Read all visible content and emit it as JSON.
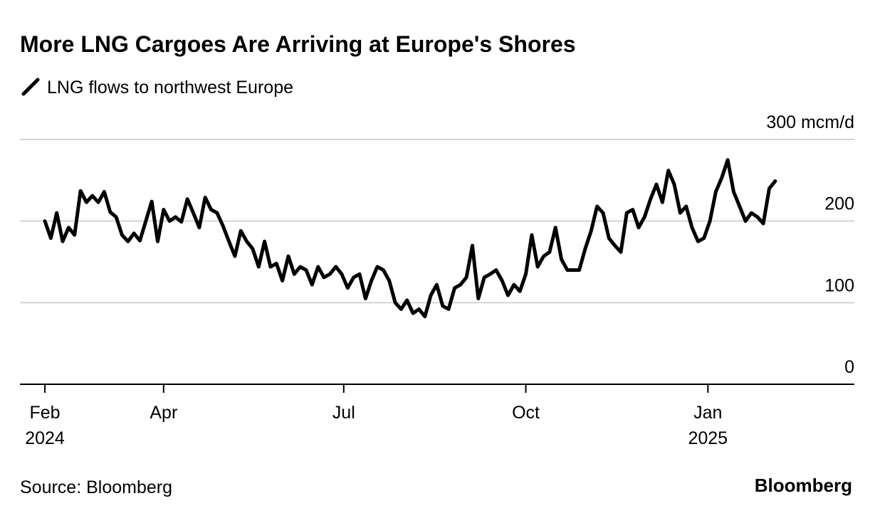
{
  "chart_data": {
    "type": "line",
    "title": "More LNG Cargoes Are Arriving at Europe's Shores",
    "source": "Source: Bloomberg",
    "brand": "Bloomberg",
    "x": [
      0,
      3,
      6,
      9,
      12,
      15,
      18,
      21,
      24,
      27,
      30,
      33,
      36,
      39,
      42,
      45,
      48,
      51,
      54,
      57,
      60,
      63,
      66,
      69,
      72,
      75,
      78,
      81,
      84,
      87,
      90,
      93,
      96,
      99,
      102,
      105,
      108,
      111,
      114,
      117,
      120,
      123,
      126,
      129,
      132,
      135,
      138,
      141,
      144,
      147,
      150,
      153,
      156,
      159,
      162,
      165,
      168,
      171,
      174,
      177,
      180,
      183,
      186,
      189,
      192,
      195,
      198,
      201,
      204,
      207,
      210,
      213,
      216,
      219,
      222,
      225,
      228,
      231,
      234,
      237,
      240,
      243,
      246,
      249,
      252,
      255,
      258,
      261,
      264,
      267,
      270,
      273,
      276,
      279,
      282,
      285,
      288,
      291,
      294,
      297,
      300,
      303,
      306,
      309,
      312,
      315,
      318,
      321,
      324,
      327,
      330,
      333,
      336,
      339,
      342,
      345,
      348,
      351,
      354,
      357,
      360,
      363,
      366,
      369
    ],
    "series": [
      {
        "name": "LNG flows to northwest Europe",
        "color": "#000000",
        "values": [
          200,
          179,
          210,
          175,
          192,
          183,
          237,
          223,
          231,
          223,
          236,
          211,
          205,
          183,
          175,
          185,
          176,
          200,
          224,
          175,
          214,
          200,
          205,
          199,
          227,
          210,
          192,
          229,
          214,
          210,
          194,
          175,
          157,
          188,
          175,
          166,
          144,
          175,
          144,
          148,
          127,
          157,
          135,
          144,
          140,
          122,
          144,
          131,
          135,
          144,
          135,
          118,
          131,
          135,
          105,
          127,
          144,
          140,
          127,
          100,
          92,
          103,
          87,
          92,
          83,
          109,
          122,
          96,
          92,
          118,
          122,
          131,
          170,
          105,
          131,
          135,
          140,
          127,
          109,
          122,
          114,
          135,
          183,
          144,
          157,
          162,
          192,
          153,
          140,
          140,
          140,
          166,
          188,
          218,
          210,
          179,
          170,
          162,
          210,
          214,
          192,
          205,
          227,
          245,
          223,
          262,
          245,
          210,
          218,
          192,
          175,
          179,
          200,
          236,
          253,
          275,
          236,
          218,
          200,
          210,
          205,
          197,
          240,
          249
        ]
      }
    ],
    "xlim": [
      -12.6,
      409
    ],
    "xticks": [
      {
        "value": 0,
        "label": "Feb\n2024"
      },
      {
        "value": 60,
        "label": "Apr"
      },
      {
        "value": 151,
        "label": "Jul"
      },
      {
        "value": 243,
        "label": "Oct"
      },
      {
        "value": 335,
        "label": "Jan\n2025"
      }
    ],
    "ylim": [
      0,
      300
    ],
    "yticks": [
      0,
      100,
      200,
      {
        "value": 300,
        "label": "300 mcm/d"
      }
    ],
    "grid": true
  }
}
